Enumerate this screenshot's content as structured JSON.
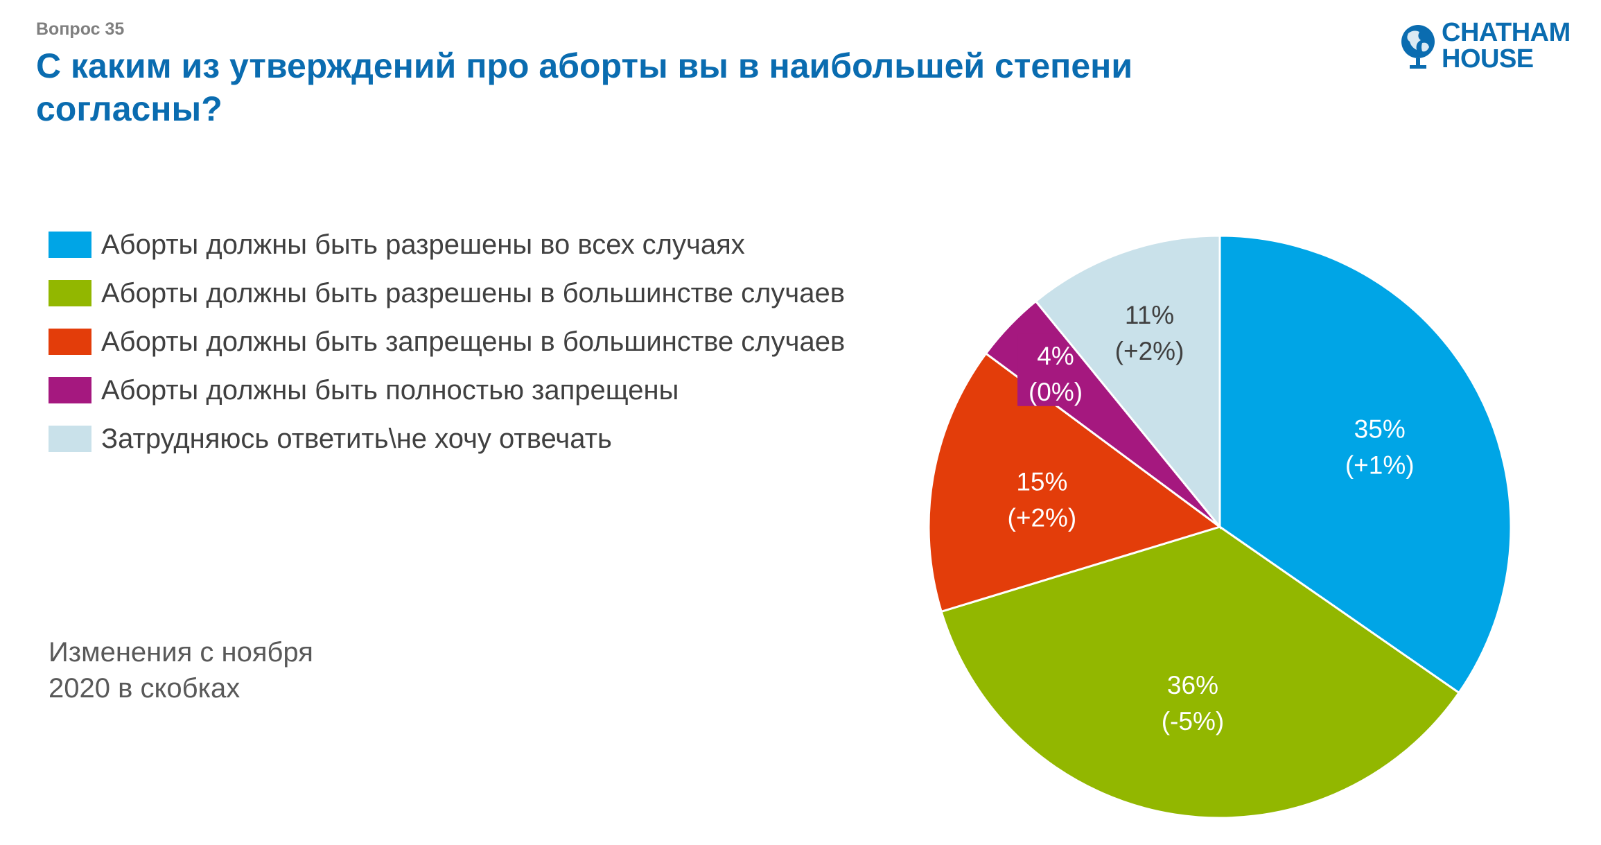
{
  "header": {
    "question": "Вопрос 35",
    "title": "С каким из утверждений про аборты вы в наибольшей степени согласны?"
  },
  "logo": {
    "line1": "CHATHAM",
    "line2": "HOUSE",
    "icon": "globe-icon",
    "color": "#0a6cb0"
  },
  "note": {
    "line1": "Изменения с ноября",
    "line2": "2020 в скобках"
  },
  "chart_data": {
    "type": "pie",
    "title": "",
    "start": "12 o'clock, clockwise",
    "legend_position": "left",
    "slices": [
      {
        "label": "Аборты должны быть разрешены во всех случаях",
        "value": 35,
        "change": "(+1%)",
        "value_label": "35%",
        "color": "#00a5e6",
        "text_color": "#ffffff"
      },
      {
        "label": "Аборты должны быть разрешены в большинстве случаев",
        "value": 36,
        "change": "(-5%)",
        "value_label": "36%",
        "color": "#92b700",
        "text_color": "#ffffff"
      },
      {
        "label": "Аборты должны быть запрещены в большинстве случаев",
        "value": 15,
        "change": "(+2%)",
        "value_label": "15%",
        "color": "#e33d0a",
        "text_color": "#ffffff"
      },
      {
        "label": "Аборты должны быть полностью запрещены",
        "value": 4,
        "change": "(0%)",
        "value_label": "4%",
        "color": "#a5187f",
        "text_color": "#ffffff"
      },
      {
        "label": "Затрудняюсь ответить\\не хочу отвечать",
        "value": 11,
        "change": "(+2%)",
        "value_label": "11%",
        "color": "#c9e1ea",
        "text_color": "#404040"
      }
    ]
  }
}
